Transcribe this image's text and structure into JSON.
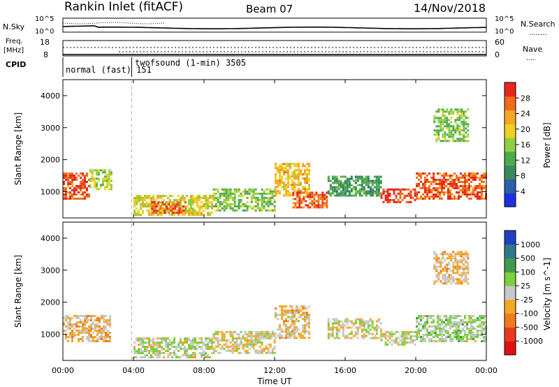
{
  "header": {
    "station": "Rankin Inlet (fitACF)",
    "beam": "Beam 07",
    "date": "14/Nov/2018"
  },
  "noise_panel": {
    "left_label": "N.Sky",
    "left_ticks": [
      "10^5",
      "10^0"
    ],
    "right_ticks": [
      "10^5",
      "10^0"
    ],
    "right_label": "N.Search",
    "right_legend": "........"
  },
  "freq_panel": {
    "left_label_1": "Freq.",
    "left_label_2": "[MHz]",
    "left_ticks": [
      "18",
      "8"
    ],
    "right_ticks": [
      "60",
      "0"
    ],
    "right_label": "Nave",
    "right_legend": "...."
  },
  "cpid_panel": {
    "label": "CPID",
    "mode_1": "normal (fast) 151",
    "mode_2": "twofsound (1-min) 3505",
    "mode_change_hour": 3.9
  },
  "axes": {
    "ylabel": "Slant Range [km]",
    "y_ticks": [
      "1000",
      "2000",
      "3000",
      "4000"
    ],
    "x_ticks": [
      "00:00",
      "04:00",
      "08:00",
      "12:00",
      "16:00",
      "20:00",
      "00:00"
    ],
    "xlabel": "Time UT"
  },
  "power_scale": {
    "label": "Power [dB]",
    "ticks": [
      "4",
      "8",
      "12",
      "16",
      "20",
      "24",
      "28"
    ],
    "colors": [
      "#1f2fe0",
      "#2f5fa8",
      "#3a8a5a",
      "#4daa4d",
      "#8fcf3f",
      "#f0d020",
      "#f5a623",
      "#ef6c1a",
      "#e8251a"
    ]
  },
  "velocity_scale": {
    "label": "Velocity [m s^-1]",
    "ticks": [
      "1000",
      "500",
      "100",
      "25",
      "-25",
      "-100",
      "-500",
      "-1000"
    ],
    "colors": [
      "#2040c0",
      "#2f7a8a",
      "#3f9a4a",
      "#7ccf3f",
      "#c8c8c8",
      "#f5a623",
      "#ef7a1a",
      "#e83a1a",
      "#e01010"
    ]
  },
  "chart_data": {
    "type": "heatmap",
    "title": "Rankin Inlet (fitACF)",
    "xlabel": "Time UT",
    "ylabel": "Slant Range [km]",
    "xlim": [
      0,
      24
    ],
    "ylim": [
      180,
      4500
    ],
    "panels": [
      {
        "name": "Power [dB]",
        "clim": [
          0,
          30
        ],
        "regions": [
          {
            "t0": 0.0,
            "t1": 1.5,
            "r0": 800,
            "r1": 1600,
            "v": 26
          },
          {
            "t0": 1.5,
            "t1": 2.7,
            "r0": 1100,
            "r1": 1700,
            "v": 16
          },
          {
            "t0": 4.0,
            "t1": 8.5,
            "r0": 300,
            "r1": 900,
            "v": 18
          },
          {
            "t0": 5.0,
            "t1": 7.0,
            "r0": 350,
            "r1": 700,
            "v": 26
          },
          {
            "t0": 8.5,
            "t1": 12.0,
            "r0": 400,
            "r1": 1100,
            "v": 14
          },
          {
            "t0": 12.0,
            "t1": 14.0,
            "r0": 900,
            "r1": 1900,
            "v": 20
          },
          {
            "t0": 13.0,
            "t1": 15.0,
            "r0": 500,
            "r1": 1000,
            "v": 26
          },
          {
            "t0": 15.0,
            "t1": 18.0,
            "r0": 900,
            "r1": 1500,
            "v": 10
          },
          {
            "t0": 18.0,
            "t1": 20.0,
            "r0": 700,
            "r1": 1100,
            "v": 28
          },
          {
            "t0": 20.0,
            "t1": 24.0,
            "r0": 800,
            "r1": 1600,
            "v": 26
          },
          {
            "t0": 21.0,
            "t1": 23.0,
            "r0": 2600,
            "r1": 3600,
            "v": 14
          }
        ]
      },
      {
        "name": "Velocity [m s^-1]",
        "clim": [
          -1000,
          1000
        ],
        "regions": [
          {
            "t0": 0.0,
            "t1": 2.7,
            "r0": 800,
            "r1": 1600,
            "v": -150
          },
          {
            "t0": 4.0,
            "t1": 8.5,
            "r0": 300,
            "r1": 900,
            "v": 80
          },
          {
            "t0": 8.5,
            "t1": 12.0,
            "r0": 400,
            "r1": 1100,
            "v": -60
          },
          {
            "t0": 12.0,
            "t1": 14.0,
            "r0": 900,
            "r1": 1900,
            "v": -120
          },
          {
            "t0": 15.0,
            "t1": 18.0,
            "r0": 900,
            "r1": 1500,
            "v": 0
          },
          {
            "t0": 18.0,
            "t1": 20.0,
            "r0": 700,
            "r1": 1100,
            "v": 60
          },
          {
            "t0": 20.0,
            "t1": 24.0,
            "r0": 800,
            "r1": 1600,
            "v": 120
          },
          {
            "t0": 21.0,
            "t1": 23.0,
            "r0": 2600,
            "r1": 3600,
            "v": -150
          }
        ]
      }
    ]
  }
}
